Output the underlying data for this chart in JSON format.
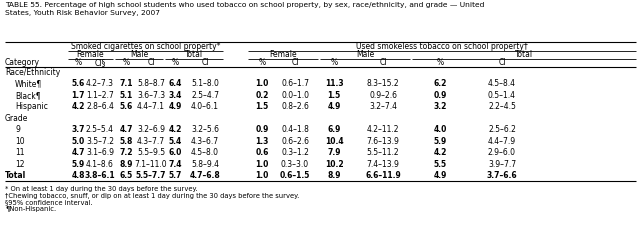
{
  "title": "TABLE 55. Percentage of high school students who used tobacco on school property, by sex, race/ethnicity, and grade — United\nStates, Youth Risk Behavior Survey, 2007",
  "col_header_level1": [
    "Smoked cigarettes on school property*",
    "Used smokeless tobacco on school property†"
  ],
  "col_header_level2": [
    "Female",
    "Male",
    "Total",
    "Female",
    "Male",
    "Total"
  ],
  "col_header_level3": [
    "%",
    "CI§",
    "%",
    "CI",
    "%",
    "CI",
    "%",
    "CI",
    "%",
    "CI",
    "%",
    "CI"
  ],
  "row_label_col": "Category",
  "rows": [
    {
      "label": "Race/Ethnicity",
      "type": "section",
      "values": []
    },
    {
      "label": "White¶",
      "type": "data",
      "indent": true,
      "values": [
        "5.6",
        "4.2–7.3",
        "7.1",
        "5.8–8.7",
        "6.4",
        "5.1–8.0",
        "1.0",
        "0.6–1.7",
        "11.3",
        "8.3–15.2",
        "6.2",
        "4.5–8.4"
      ]
    },
    {
      "label": "Black¶",
      "type": "data",
      "indent": true,
      "values": [
        "1.7",
        "1.1–2.7",
        "5.1",
        "3.6–7.3",
        "3.4",
        "2.5–4.7",
        "0.2",
        "0.0–1.0",
        "1.5",
        "0.9–2.6",
        "0.9",
        "0.5–1.4"
      ]
    },
    {
      "label": "Hispanic",
      "type": "data",
      "indent": true,
      "values": [
        "4.2",
        "2.8–6.4",
        "5.6",
        "4.4–7.1",
        "4.9",
        "4.0–6.1",
        "1.5",
        "0.8–2.6",
        "4.9",
        "3.2–7.4",
        "3.2",
        "2.2–4.5"
      ]
    },
    {
      "label": "Grade",
      "type": "section",
      "values": []
    },
    {
      "label": "9",
      "type": "data",
      "indent": true,
      "values": [
        "3.7",
        "2.5–5.4",
        "4.7",
        "3.2–6.9",
        "4.2",
        "3.2–5.6",
        "0.9",
        "0.4–1.8",
        "6.9",
        "4.2–11.2",
        "4.0",
        "2.5–6.2"
      ]
    },
    {
      "label": "10",
      "type": "data",
      "indent": true,
      "values": [
        "5.0",
        "3.5–7.2",
        "5.8",
        "4.3–7.7",
        "5.4",
        "4.3–6.7",
        "1.3",
        "0.6–2.6",
        "10.4",
        "7.6–13.9",
        "5.9",
        "4.4–7.9"
      ]
    },
    {
      "label": "11",
      "type": "data",
      "indent": true,
      "values": [
        "4.7",
        "3.1–6.9",
        "7.2",
        "5.5–9.5",
        "6.0",
        "4.5–8.0",
        "0.6",
        "0.3–1.2",
        "7.9",
        "5.5–11.2",
        "4.2",
        "2.9–6.0"
      ]
    },
    {
      "label": "12",
      "type": "data",
      "indent": true,
      "values": [
        "5.9",
        "4.1–8.6",
        "8.9",
        "7.1–11.0",
        "7.4",
        "5.8–9.4",
        "1.0",
        "0.3–3.0",
        "10.2",
        "7.4–13.9",
        "5.5",
        "3.9–7.7"
      ]
    },
    {
      "label": "Total",
      "type": "data",
      "indent": false,
      "values": [
        "4.8",
        "3.8–6.1",
        "6.5",
        "5.5–7.7",
        "5.7",
        "4.7–6.8",
        "1.0",
        "0.6–1.5",
        "8.9",
        "6.6–11.9",
        "4.9",
        "3.7–6.6"
      ]
    }
  ],
  "footnotes": [
    "* On at least 1 day during the 30 days before the survey.",
    "†Chewing tobacco, snuff, or dip on at least 1 day during the 30 days before the survey.",
    "§95% confidence interval.",
    "¶Non-Hispanic."
  ],
  "bold_rows": [
    "Total"
  ],
  "bold_pct_cols": [
    0,
    2,
    4,
    6,
    8,
    10
  ],
  "smoke_group": [
    0,
    5
  ],
  "smokeless_group": [
    6,
    11
  ],
  "female_smoke": [
    0,
    1
  ],
  "male_smoke": [
    2,
    3
  ],
  "total_smoke": [
    4,
    5
  ],
  "female_smokeless": [
    6,
    7
  ],
  "male_smokeless": [
    8,
    9
  ],
  "total_smokeless": [
    10,
    11
  ]
}
